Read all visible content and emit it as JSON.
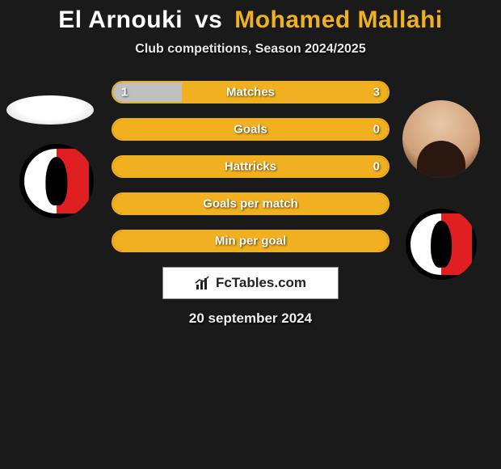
{
  "title": {
    "player1": "El Arnouki",
    "vs": "vs",
    "player2": "Mohamed Mallahi",
    "player1_color": "#ffffff",
    "player2_color": "#f0b020"
  },
  "subtitle": "Club competitions, Season 2024/2025",
  "colors": {
    "background": "#1a1a1a",
    "player1": "#ffffff",
    "player2": "#f0b020",
    "bar_border_p1": "#ffffff",
    "bar_border_p2": "#f0b020",
    "bar_fill_p1": "#bfbfbf",
    "bar_fill_p2": "#f0b020",
    "club_red": "#e02020",
    "club_black": "#000000",
    "club_white": "#ffffff"
  },
  "stats": [
    {
      "label": "Matches",
      "left_val": "1",
      "right_val": "3",
      "left_pct": 25,
      "right_pct": 75,
      "border": "#f0b020",
      "left_fill": "#bfbfbf",
      "right_fill": "#f0b020"
    },
    {
      "label": "Goals",
      "left_val": "",
      "right_val": "0",
      "left_pct": 0,
      "right_pct": 100,
      "border": "#f0b020",
      "left_fill": "#bfbfbf",
      "right_fill": "#f0b020"
    },
    {
      "label": "Hattricks",
      "left_val": "",
      "right_val": "0",
      "left_pct": 0,
      "right_pct": 100,
      "border": "#f0b020",
      "left_fill": "#bfbfbf",
      "right_fill": "#f0b020"
    },
    {
      "label": "Goals per match",
      "left_val": "",
      "right_val": "",
      "left_pct": 0,
      "right_pct": 100,
      "border": "#f0b020",
      "left_fill": "#bfbfbf",
      "right_fill": "#f0b020"
    },
    {
      "label": "Min per goal",
      "left_val": "",
      "right_val": "",
      "left_pct": 0,
      "right_pct": 100,
      "border": "#f0b020",
      "left_fill": "#bfbfbf",
      "right_fill": "#f0b020"
    }
  ],
  "brand": "FcTables.com",
  "date": "20 september 2024"
}
